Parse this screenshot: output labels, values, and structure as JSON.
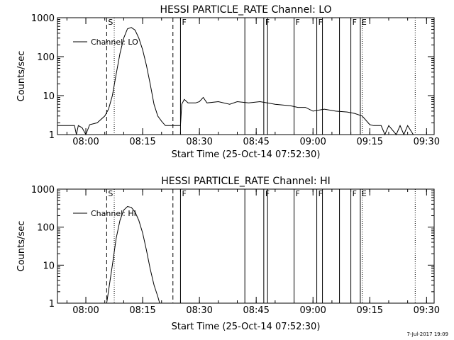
{
  "footer": {
    "stamp": "7-Jul-2017 19:09"
  },
  "chart_data": [
    {
      "type": "line",
      "title": "HESSI PARTICLE_RATE Channel: LO",
      "xlabel": "Start Time (25-Oct-14 07:52:30)",
      "ylabel": "Counts/sec",
      "yscale": "log",
      "ylim": [
        1,
        1000
      ],
      "xlim": [
        "07:52:30",
        "09:32:00"
      ],
      "x_ticks": [
        "08:00",
        "08:15",
        "08:30",
        "08:45",
        "09:00",
        "09:15",
        "09:30"
      ],
      "y_ticks": [
        "1",
        "10",
        "100",
        "1000"
      ],
      "legend": {
        "label": "Channel: LO",
        "position": "top-left"
      },
      "series": [
        {
          "name": "Channel: LO",
          "points": [
            [
              "07:52:30",
              1.7
            ],
            [
              "07:57:00",
              1.7
            ],
            [
              "07:57:30",
              1.0
            ],
            [
              "07:58:00",
              1.7
            ],
            [
              "07:59:00",
              1.5
            ],
            [
              "08:00:00",
              1.0
            ],
            [
              "08:01:00",
              1.8
            ],
            [
              "08:03:00",
              2.0
            ],
            [
              "08:05:00",
              3.0
            ],
            [
              "08:06:00",
              4.5
            ],
            [
              "08:07:00",
              10
            ],
            [
              "08:08:00",
              35
            ],
            [
              "08:09:00",
              120
            ],
            [
              "08:10:00",
              300
            ],
            [
              "08:11:00",
              520
            ],
            [
              "08:12:00",
              560
            ],
            [
              "08:13:00",
              480
            ],
            [
              "08:14:00",
              300
            ],
            [
              "08:15:00",
              150
            ],
            [
              "08:16:00",
              60
            ],
            [
              "08:17:00",
              20
            ],
            [
              "08:18:00",
              6
            ],
            [
              "08:19:00",
              3
            ],
            [
              "08:20:00",
              2.2
            ],
            [
              "08:21:00",
              1.7
            ],
            [
              "08:25:00",
              1.7
            ],
            [
              "08:25:20",
              6.0
            ],
            [
              "08:26:00",
              8.0
            ],
            [
              "08:27:00",
              6.5
            ],
            [
              "08:29:00",
              6.5
            ],
            [
              "08:30:00",
              7.0
            ],
            [
              "08:31:00",
              9.0
            ],
            [
              "08:32:00",
              6.5
            ],
            [
              "08:35:00",
              7.0
            ],
            [
              "08:38:00",
              6.0
            ],
            [
              "08:40:00",
              7.0
            ],
            [
              "08:43:00",
              6.5
            ],
            [
              "08:46:00",
              7.0
            ],
            [
              "08:50:00",
              6.0
            ],
            [
              "08:54:00",
              5.5
            ],
            [
              "08:56:00",
              5.0
            ],
            [
              "08:58:00",
              5.0
            ],
            [
              "09:00:00",
              4.0
            ],
            [
              "09:03:00",
              4.5
            ],
            [
              "09:06:00",
              4.0
            ],
            [
              "09:09:00",
              3.8
            ],
            [
              "09:11:00",
              3.5
            ],
            [
              "09:13:00",
              3.0
            ],
            [
              "09:15:00",
              1.8
            ],
            [
              "09:16:00",
              1.7
            ],
            [
              "09:18:00",
              1.7
            ],
            [
              "09:19:00",
              1.0
            ],
            [
              "09:20:00",
              1.7
            ],
            [
              "09:22:00",
              1.0
            ],
            [
              "09:23:00",
              1.7
            ],
            [
              "09:24:00",
              1.0
            ],
            [
              "09:25:00",
              1.7
            ],
            [
              "09:26:30",
              1.0
            ]
          ]
        }
      ],
      "markers": [
        {
          "label": "S",
          "time": "08:05:30",
          "style": "dashed"
        },
        {
          "label": "",
          "time": "08:07:30",
          "style": "dotted"
        },
        {
          "label": "",
          "time": "08:23:00",
          "style": "dashed"
        },
        {
          "label": "F",
          "time": "08:25:00",
          "style": "solid"
        },
        {
          "label": "",
          "time": "08:42:00",
          "style": "solid"
        },
        {
          "label": "F",
          "time": "08:47:00",
          "style": "solid"
        },
        {
          "label": "",
          "time": "08:48:00",
          "style": "solid"
        },
        {
          "label": "F",
          "time": "08:55:00",
          "style": "solid"
        },
        {
          "label": "F",
          "time": "09:01:00",
          "style": "solid"
        },
        {
          "label": "",
          "time": "09:02:30",
          "style": "solid"
        },
        {
          "label": "",
          "time": "09:07:00",
          "style": "solid"
        },
        {
          "label": "F",
          "time": "09:10:00",
          "style": "solid"
        },
        {
          "label": "E",
          "time": "09:12:30",
          "style": "solid"
        },
        {
          "label": "",
          "time": "09:13:00",
          "style": "dotted"
        },
        {
          "label": "",
          "time": "09:27:00",
          "style": "dotted"
        }
      ]
    },
    {
      "type": "line",
      "title": "HESSI PARTICLE_RATE Channel: HI",
      "xlabel": "Start Time (25-Oct-14 07:52:30)",
      "ylabel": "Counts/sec",
      "yscale": "log",
      "ylim": [
        1,
        1000
      ],
      "xlim": [
        "07:52:30",
        "09:32:00"
      ],
      "x_ticks": [
        "08:00",
        "08:15",
        "08:30",
        "08:45",
        "09:00",
        "09:15",
        "09:30"
      ],
      "y_ticks": [
        "1",
        "10",
        "100",
        "1000"
      ],
      "legend": {
        "label": "Channel: HI",
        "position": "top-left"
      },
      "series": [
        {
          "name": "Channel: HI",
          "points": [
            [
              "08:05:30",
              1.0
            ],
            [
              "08:07:00",
              10
            ],
            [
              "08:08:00",
              50
            ],
            [
              "08:09:00",
              150
            ],
            [
              "08:10:00",
              280
            ],
            [
              "08:11:00",
              350
            ],
            [
              "08:12:00",
              330
            ],
            [
              "08:13:00",
              250
            ],
            [
              "08:14:00",
              150
            ],
            [
              "08:15:00",
              70
            ],
            [
              "08:16:00",
              25
            ],
            [
              "08:17:00",
              8
            ],
            [
              "08:18:00",
              3
            ],
            [
              "08:19:00",
              1.5
            ],
            [
              "08:19:30",
              1.0
            ]
          ]
        }
      ],
      "markers": [
        {
          "label": "S",
          "time": "08:05:30",
          "style": "dashed"
        },
        {
          "label": "",
          "time": "08:07:30",
          "style": "dotted"
        },
        {
          "label": "",
          "time": "08:23:00",
          "style": "dashed"
        },
        {
          "label": "F",
          "time": "08:25:00",
          "style": "solid"
        },
        {
          "label": "",
          "time": "08:42:00",
          "style": "solid"
        },
        {
          "label": "F",
          "time": "08:47:00",
          "style": "solid"
        },
        {
          "label": "",
          "time": "08:48:00",
          "style": "solid"
        },
        {
          "label": "F",
          "time": "08:55:00",
          "style": "solid"
        },
        {
          "label": "F",
          "time": "09:01:00",
          "style": "solid"
        },
        {
          "label": "",
          "time": "09:02:30",
          "style": "solid"
        },
        {
          "label": "",
          "time": "09:07:00",
          "style": "solid"
        },
        {
          "label": "F",
          "time": "09:10:00",
          "style": "solid"
        },
        {
          "label": "E",
          "time": "09:12:30",
          "style": "solid"
        },
        {
          "label": "",
          "time": "09:13:00",
          "style": "dotted"
        },
        {
          "label": "",
          "time": "09:27:00",
          "style": "dotted"
        }
      ]
    }
  ]
}
